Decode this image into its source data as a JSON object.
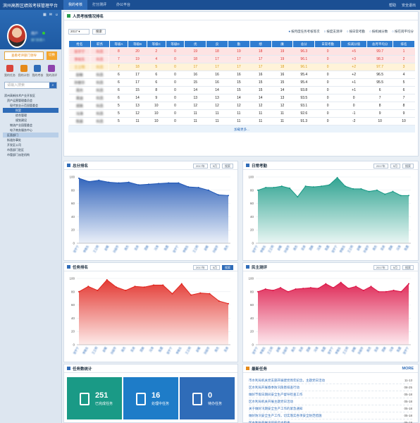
{
  "app": {
    "title": "滨州高新区绩效考核管理平台",
    "nav": [
      "我的考核",
      "打分测评",
      "办公平台"
    ],
    "nav_active": 0,
    "right": [
      "帮助",
      "安全退出"
    ]
  },
  "sidebar": {
    "user": {
      "name": "用户",
      "role": "部门负责人"
    },
    "role_label": "查看考评部门领导",
    "role_btn": "切换",
    "quick": [
      {
        "label": "我的任务",
        "color": "#d9453b"
      },
      {
        "label": "我的计划",
        "color": "#e58a1a"
      },
      {
        "label": "我的考核",
        "color": "#2f6cb8"
      },
      {
        "label": "我的测评",
        "color": "#8e44ad"
      }
    ],
    "search_placeholder": "请输入搜索",
    "tree": [
      {
        "t": "滨州高新技术产业开发区",
        "lvl": "l1"
      },
      {
        "t": "资产运营管理委员会",
        "lvl": "l2"
      },
      {
        "t": "现代农业示范园管委会",
        "lvl": "l3"
      },
      {
        "t": "科室",
        "lvl": "l4",
        "cls": "sel"
      },
      {
        "t": "综合管理",
        "lvl": "l4"
      },
      {
        "t": "规划建设",
        "lvl": "l4"
      },
      {
        "t": "物流产业园管委会",
        "lvl": "l3"
      },
      {
        "t": "电子商务服务中心",
        "lvl": "l3"
      },
      {
        "t": "区直部门",
        "lvl": "l2",
        "cls": "hl"
      },
      {
        "t": "街道办事处",
        "lvl": "l2"
      },
      {
        "t": "开发区公司",
        "lvl": "l2"
      },
      {
        "t": "市直部门驻区",
        "lvl": "l2"
      },
      {
        "t": "市管部门派驻机构",
        "lvl": "l2"
      }
    ]
  },
  "ranking": {
    "title": "人员考核情况排名",
    "year": "2017",
    "search": "搜索",
    "radios": [
      "按月度任务考核等次",
      "按度支测评",
      "按日常考勤",
      "按机械分数",
      "按在岗平均分"
    ],
    "radio_on": 0,
    "headers": [
      "姓名",
      "职务",
      "等级A",
      "等级B",
      "等级C",
      "等级D",
      "优",
      "良",
      "勤",
      "绩",
      "廉",
      "总分",
      "日常考勤",
      "扣减分值",
      "总月平均分",
      "排名"
    ],
    "rows": [
      [
        "张宇宁",
        "科员",
        "8",
        "20",
        "2",
        "0",
        "19",
        "18",
        "19",
        "18",
        "19",
        "96.3",
        "0",
        "+5",
        "99.7",
        "1"
      ],
      [
        "李晓东",
        "科员",
        "7",
        "19",
        "4",
        "0",
        "18",
        "17",
        "17",
        "17",
        "19",
        "96.1",
        "0",
        "+3",
        "98.3",
        "2"
      ],
      [
        "王立明",
        "科员",
        "7",
        "18",
        "5",
        "0",
        "17",
        "17",
        "17",
        "17",
        "18",
        "96.1",
        "0",
        "+2",
        "97.7",
        "3"
      ],
      [
        "赵敏",
        "科员",
        "6",
        "17",
        "6",
        "0",
        "16",
        "16",
        "16",
        "16",
        "16",
        "95.4",
        "0",
        "+2",
        "96.5",
        "4"
      ],
      [
        "孙丽华",
        "科员",
        "6",
        "17",
        "6",
        "0",
        "15",
        "16",
        "15",
        "15",
        "15",
        "95.4",
        "0",
        "+1",
        "95.5",
        "5"
      ],
      [
        "周杰",
        "科员",
        "6",
        "15",
        "8",
        "0",
        "14",
        "14",
        "15",
        "15",
        "14",
        "93.8",
        "0",
        "+1",
        "6",
        "6"
      ],
      [
        "吴迪",
        "科员",
        "6",
        "14",
        "9",
        "0",
        "13",
        "13",
        "14",
        "14",
        "13",
        "93.5",
        "0",
        "0",
        "7",
        "7"
      ],
      [
        "郑爽",
        "科员",
        "5",
        "13",
        "10",
        "0",
        "12",
        "12",
        "12",
        "12",
        "12",
        "93.1",
        "0",
        "0",
        "8",
        "8"
      ],
      [
        "冯涛",
        "科员",
        "5",
        "12",
        "10",
        "0",
        "11",
        "11",
        "11",
        "11",
        "11",
        "92.6",
        "0",
        "-1",
        "9",
        "9"
      ],
      [
        "陈晨",
        "科员",
        "5",
        "11",
        "10",
        "0",
        "11",
        "11",
        "11",
        "11",
        "11",
        "91.3",
        "0",
        "-2",
        "10",
        "10"
      ]
    ],
    "more": "加载更多..."
  },
  "charts": [
    {
      "title": "总分排名",
      "year": "2017年",
      "month": "5月",
      "search": "搜索",
      "color": "#1f56b5",
      "fill_top": "#1f56b5",
      "fill_bottom": "#e8eef8",
      "values": [
        98,
        93,
        95,
        92,
        91,
        92,
        88,
        89,
        90,
        91,
        91,
        85,
        84,
        80,
        73,
        72
      ],
      "ylim": [
        0,
        100
      ],
      "yticks": [
        0,
        20,
        40,
        60,
        80,
        100
      ]
    },
    {
      "title": "日常考勤",
      "year": "2017年",
      "month": "5月",
      "search": "搜索",
      "color": "#1a9a86",
      "fill_top": "#1a9a86",
      "fill_bottom": "#e6f5f2",
      "values": [
        80,
        84,
        84,
        86,
        83,
        70,
        86,
        85,
        86,
        88,
        99,
        86,
        82,
        82,
        78,
        80,
        74,
        78,
        72,
        72
      ],
      "ylim": [
        0,
        100
      ],
      "yticks": [
        0,
        20,
        40,
        60,
        80,
        100
      ]
    },
    {
      "title": "任务排名",
      "year": "2017年",
      "month": "5月",
      "search": "搜索",
      "color": "#e0231c",
      "fill_top": "#e0231c",
      "fill_bottom": "#fde8e6",
      "values": [
        80,
        88,
        82,
        98,
        87,
        82,
        88,
        87,
        90,
        90,
        77,
        92,
        75,
        78,
        77,
        66,
        62
      ],
      "ylim": [
        0,
        100
      ],
      "yticks": [
        0,
        20,
        40,
        60,
        80,
        100
      ]
    },
    {
      "title": "民主测评",
      "year": "2017年",
      "month": "5月",
      "search": "搜索",
      "color": "#dc1446",
      "fill_top": "#dc1446",
      "fill_bottom": "#fde6ec",
      "values": [
        80,
        84,
        82,
        86,
        80,
        84,
        85,
        86,
        85,
        92,
        86,
        94,
        85,
        88,
        82,
        88,
        80,
        80,
        82,
        80,
        92
      ],
      "ylim": [
        0,
        100
      ],
      "yticks": [
        0,
        20,
        40,
        60,
        80,
        100
      ]
    }
  ],
  "xcats": [
    "张宇宁",
    "李晓东",
    "王立明",
    "赵敏",
    "孙丽华",
    "周杰",
    "吴迪",
    "郑爽",
    "冯涛",
    "陈晨",
    "张宇宁",
    "李晓东",
    "王立明",
    "赵敏",
    "孙丽华",
    "周杰",
    "吴迪",
    "郑爽",
    "冯涛",
    "陈晨",
    "张宇宁"
  ],
  "tasks": {
    "title": "任务数统计",
    "tiles": [
      {
        "num": "251",
        "label": "已完成任务",
        "color": "#1a9a86"
      },
      {
        "num": "16",
        "label": "处理中任务",
        "color": "#1e7cc8"
      },
      {
        "num": "0",
        "label": "待办任务",
        "color": "#2f6cb8"
      }
    ]
  },
  "news": {
    "title": "最新任务",
    "more": "MORE",
    "items": [
      {
        "t": "市水利局机关党支部开展建党周年纪念，主题党日活动",
        "d": "11-13"
      },
      {
        "t": "区水利局开展春季防汛隐患排查行动",
        "d": "08-25"
      },
      {
        "t": "做好节假日期间安全生产督导检查工作",
        "d": "05-18"
      },
      {
        "t": "区水利局机关开展主题党日活动",
        "d": "05-18"
      },
      {
        "t": "关于做好汛期安全生产工作的紧急通知",
        "d": "05-18"
      },
      {
        "t": "做好防汛安全生产工作，切实落实各项安全防范措施",
        "d": "05-18"
      },
      {
        "t": "区水利局开展汛前安全大检查",
        "d": "05-18"
      },
      {
        "t": "做好节假日期间安全生产督导检查工作",
        "d": "05-18"
      }
    ]
  }
}
